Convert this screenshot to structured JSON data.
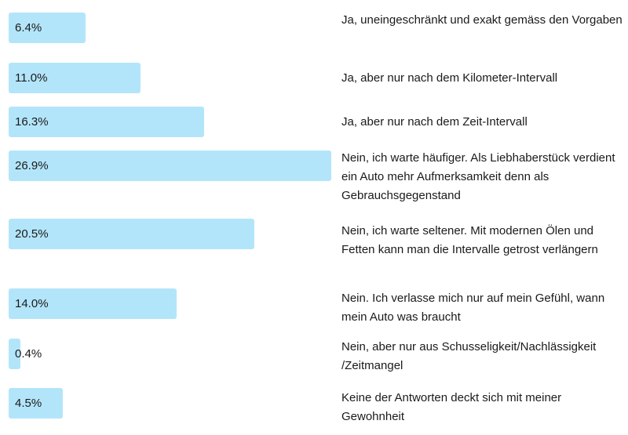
{
  "chart_data": {
    "type": "bar",
    "orientation": "horizontal",
    "value_unit": "%",
    "categories": [
      "Ja, uneingeschränkt und exakt gemäss den Vorgaben",
      "Ja, aber nur nach dem Kilometer-Intervall",
      "Ja, aber nur nach dem Zeit-Intervall",
      "Nein, ich warte häufiger. Als Liebhaberstück verdient ein Auto mehr Aufmerksamkeit denn als Gebrauchsgegenstand",
      "Nein, ich warte seltener. Mit modernen Ölen und Fetten kann man die Intervalle getrost verlängern",
      "Nein. Ich verlasse mich nur auf mein Gefühl, wann mein Auto was braucht",
      "Nein, aber nur aus Schusseligkeit/Nachlässigkeit /Zeitmangel",
      "Keine der Antworten deckt sich mit meiner Gewohnheit"
    ],
    "values": [
      6.4,
      11.0,
      16.3,
      26.9,
      20.5,
      14.0,
      0.4,
      4.5
    ],
    "value_labels": [
      "6.4%",
      "11.0%",
      "16.3%",
      "26.9%",
      "20.5%",
      "14.0%",
      "0.4%",
      "4.5%"
    ],
    "xlim": [
      0,
      26.9
    ],
    "bar_color": "#b3e5fa",
    "grid": false,
    "legend": "none"
  }
}
